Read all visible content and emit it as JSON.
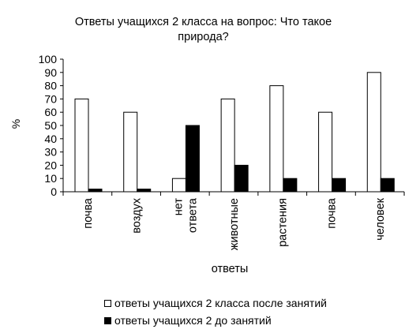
{
  "chart_data": {
    "type": "bar",
    "title": "Ответы учащихся 2 класса на вопрос: Что такое природа?",
    "title_lines": [
      "Ответы учащихся 2 класса на вопрос: Что такое",
      "природа?"
    ],
    "xlabel": "ответы",
    "ylabel": "%",
    "ylim": [
      0,
      100
    ],
    "yticks": [
      0,
      10,
      20,
      30,
      40,
      50,
      60,
      70,
      80,
      90,
      100
    ],
    "grid": false,
    "legend_position": "bottom",
    "categories": [
      [
        "почва"
      ],
      [
        "воздух"
      ],
      [
        "нет",
        "ответа"
      ],
      [
        "животные"
      ],
      [
        "растения"
      ],
      [
        "почва"
      ],
      [
        "человек"
      ]
    ],
    "series": [
      {
        "name": "ответы учащихся 2 класса после занятий",
        "color": "#ffffff",
        "values": [
          70,
          60,
          10,
          70,
          80,
          60,
          90
        ]
      },
      {
        "name": "ответы учащихся 2 до занятий",
        "color": "#000000",
        "values": [
          2,
          2,
          50,
          20,
          10,
          10,
          10
        ]
      }
    ]
  }
}
